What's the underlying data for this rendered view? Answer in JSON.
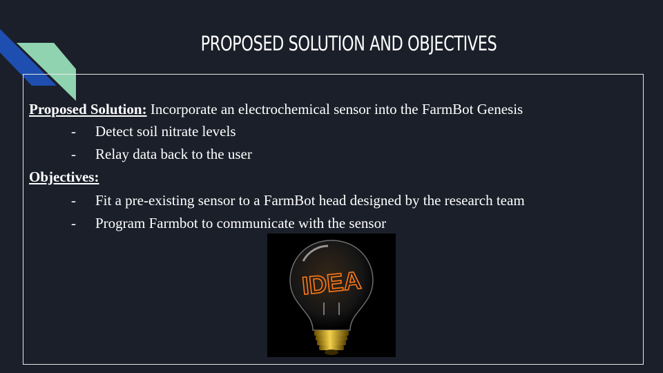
{
  "slide": {
    "title": "PROPOSED SOLUTION AND OBJECTIVES",
    "solution_heading": "Proposed Solution:",
    "solution_text": " Incorporate an electrochemical sensor into the FarmBot Genesis",
    "solution_bullets": [
      "Detect soil nitrate levels",
      "Relay data back to the user"
    ],
    "objectives_heading": "Objectives:",
    "objectives_bullets": [
      "Fit a pre-existing sensor to a FarmBot head designed by the research team",
      "Program Farmbot to communicate with the sensor"
    ],
    "bullet_marker": "-",
    "image_text": "IDEA"
  },
  "colors": {
    "background": "#1b1f2a",
    "accent_blue": "#1e4fb0",
    "accent_green": "#8fd3b0",
    "bulb_glow": "#ff7a1a"
  }
}
